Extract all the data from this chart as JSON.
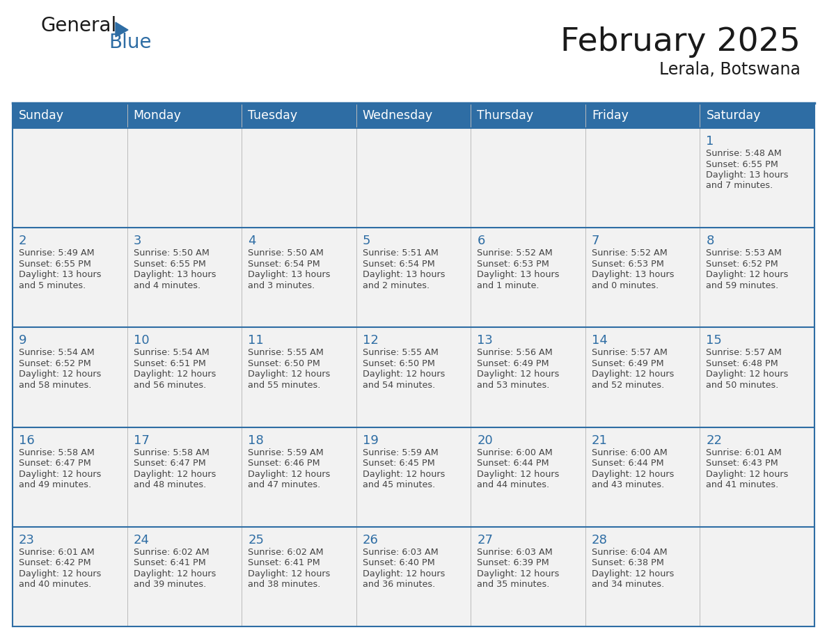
{
  "title": "February 2025",
  "subtitle": "Lerala, Botswana",
  "days_of_week": [
    "Sunday",
    "Monday",
    "Tuesday",
    "Wednesday",
    "Thursday",
    "Friday",
    "Saturday"
  ],
  "header_bg": "#2E6DA4",
  "header_text": "#FFFFFF",
  "cell_bg": "#F2F2F2",
  "border_color": "#2E6DA4",
  "row_line_color": "#2E6DA4",
  "col_line_color": "#BBBBBB",
  "text_color": "#444444",
  "day_num_color": "#2E6DA4",
  "title_color": "#1a1a1a",
  "subtitle_color": "#1a1a1a",
  "calendar_data": [
    [
      null,
      null,
      null,
      null,
      null,
      null,
      {
        "day": 1,
        "sunrise": "5:48 AM",
        "sunset": "6:55 PM",
        "daylight": "13 hours and 7 minutes."
      }
    ],
    [
      {
        "day": 2,
        "sunrise": "5:49 AM",
        "sunset": "6:55 PM",
        "daylight": "13 hours and 5 minutes."
      },
      {
        "day": 3,
        "sunrise": "5:50 AM",
        "sunset": "6:55 PM",
        "daylight": "13 hours and 4 minutes."
      },
      {
        "day": 4,
        "sunrise": "5:50 AM",
        "sunset": "6:54 PM",
        "daylight": "13 hours and 3 minutes."
      },
      {
        "day": 5,
        "sunrise": "5:51 AM",
        "sunset": "6:54 PM",
        "daylight": "13 hours and 2 minutes."
      },
      {
        "day": 6,
        "sunrise": "5:52 AM",
        "sunset": "6:53 PM",
        "daylight": "13 hours and 1 minute."
      },
      {
        "day": 7,
        "sunrise": "5:52 AM",
        "sunset": "6:53 PM",
        "daylight": "13 hours and 0 minutes."
      },
      {
        "day": 8,
        "sunrise": "5:53 AM",
        "sunset": "6:52 PM",
        "daylight": "12 hours and 59 minutes."
      }
    ],
    [
      {
        "day": 9,
        "sunrise": "5:54 AM",
        "sunset": "6:52 PM",
        "daylight": "12 hours and 58 minutes."
      },
      {
        "day": 10,
        "sunrise": "5:54 AM",
        "sunset": "6:51 PM",
        "daylight": "12 hours and 56 minutes."
      },
      {
        "day": 11,
        "sunrise": "5:55 AM",
        "sunset": "6:50 PM",
        "daylight": "12 hours and 55 minutes."
      },
      {
        "day": 12,
        "sunrise": "5:55 AM",
        "sunset": "6:50 PM",
        "daylight": "12 hours and 54 minutes."
      },
      {
        "day": 13,
        "sunrise": "5:56 AM",
        "sunset": "6:49 PM",
        "daylight": "12 hours and 53 minutes."
      },
      {
        "day": 14,
        "sunrise": "5:57 AM",
        "sunset": "6:49 PM",
        "daylight": "12 hours and 52 minutes."
      },
      {
        "day": 15,
        "sunrise": "5:57 AM",
        "sunset": "6:48 PM",
        "daylight": "12 hours and 50 minutes."
      }
    ],
    [
      {
        "day": 16,
        "sunrise": "5:58 AM",
        "sunset": "6:47 PM",
        "daylight": "12 hours and 49 minutes."
      },
      {
        "day": 17,
        "sunrise": "5:58 AM",
        "sunset": "6:47 PM",
        "daylight": "12 hours and 48 minutes."
      },
      {
        "day": 18,
        "sunrise": "5:59 AM",
        "sunset": "6:46 PM",
        "daylight": "12 hours and 47 minutes."
      },
      {
        "day": 19,
        "sunrise": "5:59 AM",
        "sunset": "6:45 PM",
        "daylight": "12 hours and 45 minutes."
      },
      {
        "day": 20,
        "sunrise": "6:00 AM",
        "sunset": "6:44 PM",
        "daylight": "12 hours and 44 minutes."
      },
      {
        "day": 21,
        "sunrise": "6:00 AM",
        "sunset": "6:44 PM",
        "daylight": "12 hours and 43 minutes."
      },
      {
        "day": 22,
        "sunrise": "6:01 AM",
        "sunset": "6:43 PM",
        "daylight": "12 hours and 41 minutes."
      }
    ],
    [
      {
        "day": 23,
        "sunrise": "6:01 AM",
        "sunset": "6:42 PM",
        "daylight": "12 hours and 40 minutes."
      },
      {
        "day": 24,
        "sunrise": "6:02 AM",
        "sunset": "6:41 PM",
        "daylight": "12 hours and 39 minutes."
      },
      {
        "day": 25,
        "sunrise": "6:02 AM",
        "sunset": "6:41 PM",
        "daylight": "12 hours and 38 minutes."
      },
      {
        "day": 26,
        "sunrise": "6:03 AM",
        "sunset": "6:40 PM",
        "daylight": "12 hours and 36 minutes."
      },
      {
        "day": 27,
        "sunrise": "6:03 AM",
        "sunset": "6:39 PM",
        "daylight": "12 hours and 35 minutes."
      },
      {
        "day": 28,
        "sunrise": "6:04 AM",
        "sunset": "6:38 PM",
        "daylight": "12 hours and 34 minutes."
      },
      null
    ]
  ],
  "logo_text_general": "General",
  "logo_text_blue": "Blue",
  "logo_color_general": "#1a1a1a",
  "logo_color_blue": "#2E6DA4",
  "logo_triangle_color": "#2E6DA4",
  "fig_width": 11.88,
  "fig_height": 9.18,
  "dpi": 100
}
